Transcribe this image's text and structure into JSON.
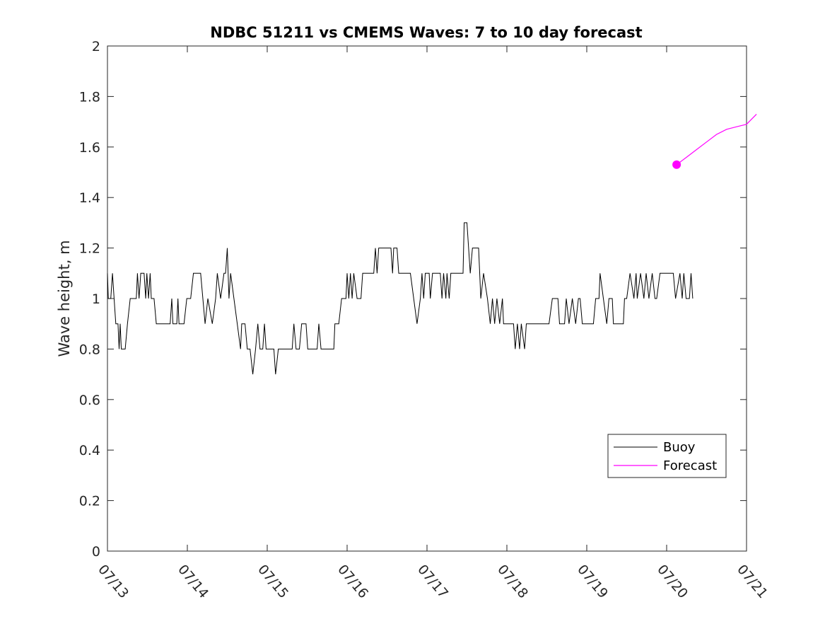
{
  "chart_data": {
    "type": "line",
    "title": "NDBC 51211 vs CMEMS Waves: 7 to 10 day forecast",
    "xlabel": "",
    "ylabel": "Wave height, m",
    "x_tick_labels": [
      "07/13",
      "07/14",
      "07/15",
      "07/16",
      "07/17",
      "07/18",
      "07/19",
      "07/20",
      "07/21"
    ],
    "y_tick_labels": [
      "0",
      "0.2",
      "0.4",
      "0.6",
      "0.8",
      "1",
      "1.2",
      "1.4",
      "1.6",
      "1.8",
      "2"
    ],
    "xlim": [
      "07/13 00:00",
      "07/21 00:00"
    ],
    "ylim": [
      0,
      2
    ],
    "grid": false,
    "legend_position": "bottom-right",
    "series": [
      {
        "name": "Buoy",
        "color": "#000000",
        "points": [
          [
            "07/13 00:00",
            1.1
          ],
          [
            "07/13 00:15",
            1.0
          ],
          [
            "07/13 01:00",
            1.0
          ],
          [
            "07/13 01:30",
            1.1
          ],
          [
            "07/13 02:00",
            1.0
          ],
          [
            "07/13 02:30",
            0.9
          ],
          [
            "07/13 03:10",
            0.9
          ],
          [
            "07/13 03:30",
            0.8
          ],
          [
            "07/13 03:50",
            0.9
          ],
          [
            "07/13 04:10",
            0.8
          ],
          [
            "07/13 05:20",
            0.8
          ],
          [
            "07/13 06:00",
            0.9
          ],
          [
            "07/13 06:50",
            1.0
          ],
          [
            "07/13 08:40",
            1.0
          ],
          [
            "07/13 09:00",
            1.1
          ],
          [
            "07/13 09:30",
            1.0
          ],
          [
            "07/13 10:00",
            1.1
          ],
          [
            "07/13 11:00",
            1.1
          ],
          [
            "07/13 11:30",
            1.0
          ],
          [
            "07/13 11:50",
            1.1
          ],
          [
            "07/13 12:20",
            1.0
          ],
          [
            "07/13 12:50",
            1.1
          ],
          [
            "07/13 13:10",
            1.0
          ],
          [
            "07/13 14:00",
            1.0
          ],
          [
            "07/13 14:40",
            0.9
          ],
          [
            "07/13 18:50",
            0.9
          ],
          [
            "07/13 19:20",
            1.0
          ],
          [
            "07/13 19:40",
            0.9
          ],
          [
            "07/13 20:50",
            0.9
          ],
          [
            "07/13 21:10",
            1.0
          ],
          [
            "07/13 21:30",
            0.9
          ],
          [
            "07/13 23:00",
            0.9
          ],
          [
            "07/13 23:50",
            1.0
          ],
          [
            "07/14 01:00",
            1.0
          ],
          [
            "07/14 01:50",
            1.1
          ],
          [
            "07/14 04:00",
            1.1
          ],
          [
            "07/14 05:20",
            0.9
          ],
          [
            "07/14 06:10",
            1.0
          ],
          [
            "07/14 07:30",
            0.9
          ],
          [
            "07/14 08:30",
            1.0
          ],
          [
            "07/14 09:00",
            1.1
          ],
          [
            "07/14 10:00",
            1.0
          ],
          [
            "07/14 11:00",
            1.1
          ],
          [
            "07/14 11:30",
            1.1
          ],
          [
            "07/14 12:00",
            1.2
          ],
          [
            "07/14 12:30",
            1.0
          ],
          [
            "07/14 13:00",
            1.1
          ],
          [
            "07/14 14:00",
            1.0
          ],
          [
            "07/14 15:00",
            0.9
          ],
          [
            "07/14 16:00",
            0.8
          ],
          [
            "07/14 16:20",
            0.9
          ],
          [
            "07/14 17:20",
            0.9
          ],
          [
            "07/14 18:00",
            0.8
          ],
          [
            "07/14 18:50",
            0.8
          ],
          [
            "07/14 19:40",
            0.7
          ],
          [
            "07/14 20:30",
            0.8
          ],
          [
            "07/14 21:10",
            0.9
          ],
          [
            "07/14 21:50",
            0.8
          ],
          [
            "07/14 22:40",
            0.8
          ],
          [
            "07/14 23:10",
            0.9
          ],
          [
            "07/14 23:40",
            0.8
          ],
          [
            "07/15 02:00",
            0.8
          ],
          [
            "07/15 02:30",
            0.7
          ],
          [
            "07/15 03:20",
            0.8
          ],
          [
            "07/15 07:30",
            0.8
          ],
          [
            "07/15 08:00",
            0.9
          ],
          [
            "07/15 08:40",
            0.8
          ],
          [
            "07/15 09:40",
            0.8
          ],
          [
            "07/15 10:20",
            0.9
          ],
          [
            "07/15 11:40",
            0.9
          ],
          [
            "07/15 12:10",
            0.8
          ],
          [
            "07/15 15:00",
            0.8
          ],
          [
            "07/15 15:30",
            0.9
          ],
          [
            "07/15 16:10",
            0.8
          ],
          [
            "07/15 20:00",
            0.8
          ],
          [
            "07/15 20:20",
            0.9
          ],
          [
            "07/15 21:30",
            0.9
          ],
          [
            "07/15 22:20",
            1.0
          ],
          [
            "07/15 23:40",
            1.0
          ],
          [
            "07/16 00:00",
            1.1
          ],
          [
            "07/16 00:30",
            1.0
          ],
          [
            "07/16 01:00",
            1.1
          ],
          [
            "07/16 01:30",
            1.0
          ],
          [
            "07/16 02:00",
            1.1
          ],
          [
            "07/16 03:00",
            1.0
          ],
          [
            "07/16 04:10",
            1.0
          ],
          [
            "07/16 04:40",
            1.1
          ],
          [
            "07/16 08:00",
            1.1
          ],
          [
            "07/16 08:30",
            1.2
          ],
          [
            "07/16 09:00",
            1.1
          ],
          [
            "07/16 09:30",
            1.2
          ],
          [
            "07/16 13:10",
            1.2
          ],
          [
            "07/16 13:40",
            1.1
          ],
          [
            "07/16 14:00",
            1.2
          ],
          [
            "07/16 15:00",
            1.2
          ],
          [
            "07/16 15:30",
            1.1
          ],
          [
            "07/16 19:00",
            1.1
          ],
          [
            "07/16 20:00",
            1.0
          ],
          [
            "07/16 21:00",
            0.9
          ],
          [
            "07/16 22:00",
            1.0
          ],
          [
            "07/16 22:30",
            1.1
          ],
          [
            "07/16 23:00",
            1.0
          ],
          [
            "07/16 23:30",
            1.1
          ],
          [
            "07/17 00:40",
            1.1
          ],
          [
            "07/17 01:00",
            1.0
          ],
          [
            "07/17 01:40",
            1.1
          ],
          [
            "07/17 04:00",
            1.1
          ],
          [
            "07/17 04:30",
            1.0
          ],
          [
            "07/17 05:00",
            1.1
          ],
          [
            "07/17 05:40",
            1.0
          ],
          [
            "07/17 06:00",
            1.1
          ],
          [
            "07/17 06:40",
            1.0
          ],
          [
            "07/17 07:10",
            1.1
          ],
          [
            "07/17 10:50",
            1.1
          ],
          [
            "07/17 11:10",
            1.3
          ],
          [
            "07/17 12:00",
            1.3
          ],
          [
            "07/17 13:00",
            1.1
          ],
          [
            "07/17 13:40",
            1.2
          ],
          [
            "07/17 15:30",
            1.2
          ],
          [
            "07/17 16:10",
            1.0
          ],
          [
            "07/17 17:00",
            1.1
          ],
          [
            "07/17 18:10",
            1.0
          ],
          [
            "07/17 19:00",
            0.9
          ],
          [
            "07/17 19:40",
            1.0
          ],
          [
            "07/17 20:20",
            0.9
          ],
          [
            "07/17 21:00",
            1.0
          ],
          [
            "07/17 21:50",
            0.9
          ],
          [
            "07/17 22:40",
            1.0
          ],
          [
            "07/17 23:00",
            0.9
          ],
          [
            "07/18 02:00",
            0.9
          ],
          [
            "07/18 02:30",
            0.8
          ],
          [
            "07/18 03:10",
            0.9
          ],
          [
            "07/18 03:50",
            0.8
          ],
          [
            "07/18 04:20",
            0.9
          ],
          [
            "07/18 05:20",
            0.8
          ],
          [
            "07/18 05:50",
            0.9
          ],
          [
            "07/18 12:40",
            0.9
          ],
          [
            "07/18 13:40",
            1.0
          ],
          [
            "07/18 15:20",
            1.0
          ],
          [
            "07/18 15:50",
            0.9
          ],
          [
            "07/18 17:20",
            0.9
          ],
          [
            "07/18 17:50",
            1.0
          ],
          [
            "07/18 18:40",
            0.9
          ],
          [
            "07/18 19:40",
            1.0
          ],
          [
            "07/18 20:40",
            0.9
          ],
          [
            "07/18 21:30",
            1.0
          ],
          [
            "07/18 22:00",
            1.0
          ],
          [
            "07/18 22:40",
            0.9
          ],
          [
            "07/19 02:00",
            0.9
          ],
          [
            "07/19 02:40",
            1.0
          ],
          [
            "07/19 03:40",
            1.0
          ],
          [
            "07/19 04:00",
            1.1
          ],
          [
            "07/19 05:00",
            1.0
          ],
          [
            "07/19 06:00",
            0.9
          ],
          [
            "07/19 06:40",
            1.0
          ],
          [
            "07/19 07:40",
            1.0
          ],
          [
            "07/19 08:00",
            0.9
          ],
          [
            "07/19 11:00",
            0.9
          ],
          [
            "07/19 11:20",
            1.0
          ],
          [
            "07/19 12:00",
            1.0
          ],
          [
            "07/19 13:00",
            1.1
          ],
          [
            "07/19 14:10",
            1.0
          ],
          [
            "07/19 14:50",
            1.1
          ],
          [
            "07/19 15:10",
            1.0
          ],
          [
            "07/19 16:10",
            1.1
          ],
          [
            "07/19 17:10",
            1.0
          ],
          [
            "07/19 17:50",
            1.1
          ],
          [
            "07/19 18:40",
            1.0
          ],
          [
            "07/19 19:40",
            1.1
          ],
          [
            "07/19 20:30",
            1.0
          ],
          [
            "07/19 21:00",
            1.0
          ],
          [
            "07/19 22:00",
            1.1
          ],
          [
            "07/20 02:00",
            1.1
          ],
          [
            "07/20 02:40",
            1.0
          ],
          [
            "07/20 04:00",
            1.1
          ],
          [
            "07/20 04:40",
            1.0
          ],
          [
            "07/20 05:10",
            1.1
          ],
          [
            "07/20 05:50",
            1.0
          ],
          [
            "07/20 06:50",
            1.0
          ],
          [
            "07/20 07:20",
            1.1
          ],
          [
            "07/20 07:50",
            1.0
          ]
        ]
      },
      {
        "name": "Forecast",
        "color": "#ff00ff",
        "points": [
          [
            "07/20 03:00",
            1.53
          ],
          [
            "07/20 06:00",
            1.56
          ],
          [
            "07/20 09:00",
            1.59
          ],
          [
            "07/20 12:00",
            1.62
          ],
          [
            "07/20 15:00",
            1.65
          ],
          [
            "07/20 18:00",
            1.67
          ],
          [
            "07/20 21:00",
            1.68
          ],
          [
            "07/21 00:00",
            1.69
          ],
          [
            "07/21 03:00",
            1.73
          ]
        ]
      }
    ]
  }
}
